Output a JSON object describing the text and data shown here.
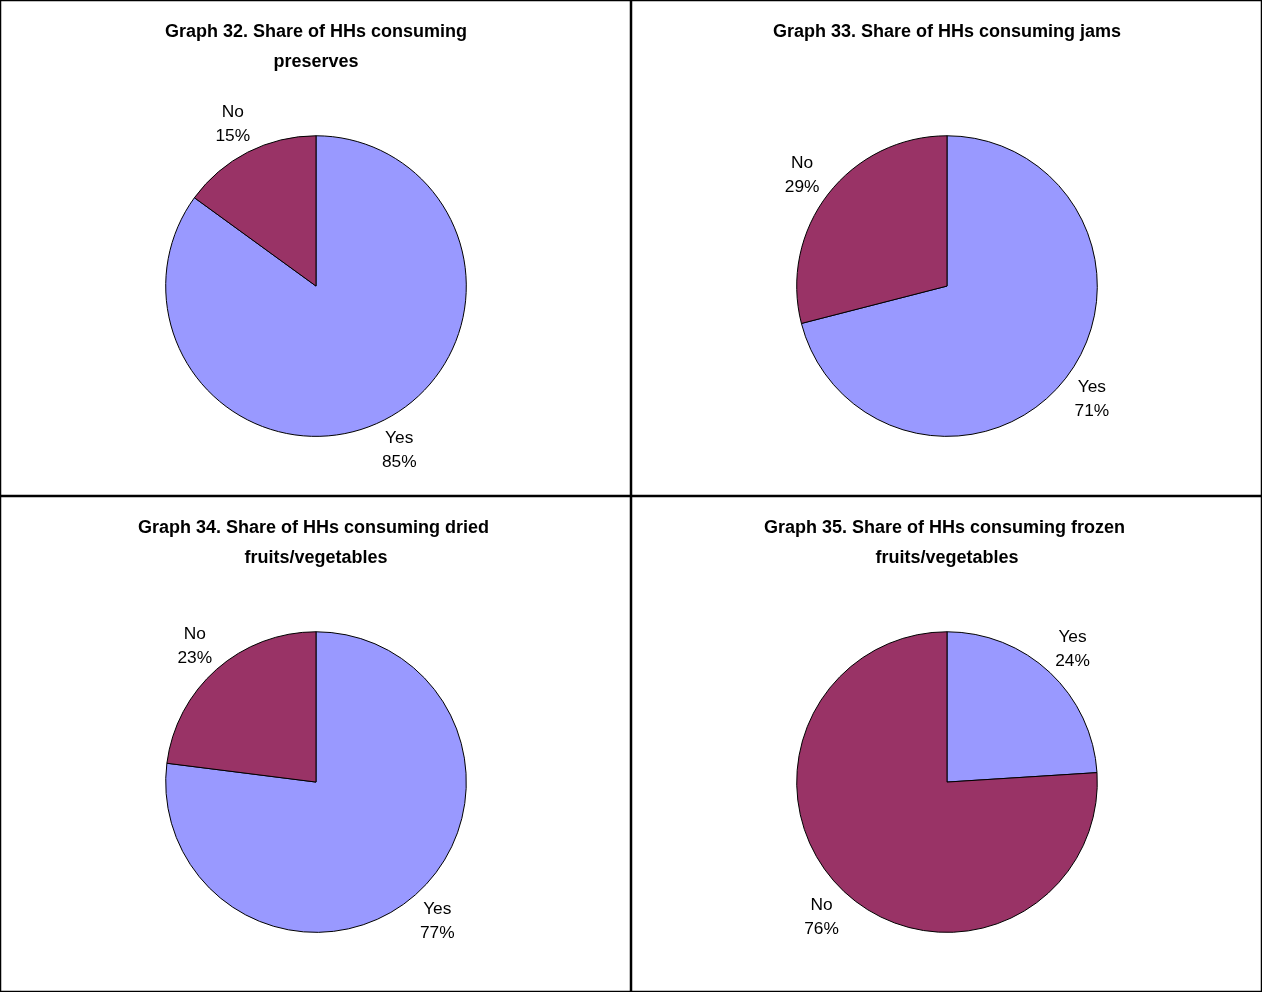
{
  "chart_data": [
    {
      "type": "pie",
      "title": "Graph 32. Share of HHs consuming preserves",
      "categories": [
        "Yes",
        "No"
      ],
      "values": [
        85,
        15
      ],
      "value_labels": [
        "85%",
        "15%"
      ],
      "colors": [
        "#9999ff",
        "#993366"
      ]
    },
    {
      "type": "pie",
      "title": "Graph 33. Share of HHs consuming jams",
      "categories": [
        "Yes",
        "No"
      ],
      "values": [
        71,
        29
      ],
      "value_labels": [
        "71%",
        "29%"
      ],
      "colors": [
        "#9999ff",
        "#993366"
      ]
    },
    {
      "type": "pie",
      "title": "Graph 34.  Share of HHs consuming dried fruits/vegetables",
      "categories": [
        "Yes",
        "No"
      ],
      "values": [
        77,
        23
      ],
      "value_labels": [
        "77%",
        "23%"
      ],
      "colors": [
        "#9999ff",
        "#993366"
      ]
    },
    {
      "type": "pie",
      "title": "Graph 35.  Share of HHs consuming frozen fruits/vegetables",
      "categories": [
        "Yes",
        "No"
      ],
      "values": [
        24,
        76
      ],
      "value_labels": [
        "24%",
        "76%"
      ],
      "colors": [
        "#9999ff",
        "#993366"
      ]
    }
  ]
}
